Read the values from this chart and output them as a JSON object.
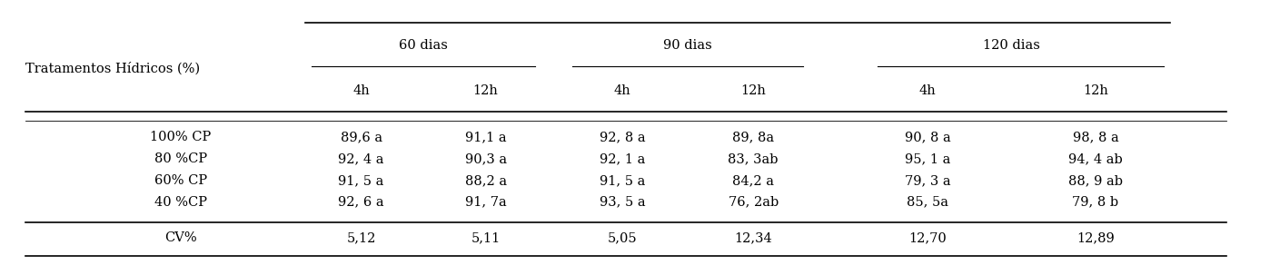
{
  "group_labels": [
    "60 dias",
    "90 dias",
    "120 dias"
  ],
  "sub_labels": [
    "4h",
    "12h",
    "4h",
    "12h",
    "4h",
    "12h"
  ],
  "tratamentos_label": "Tratamentos Hídricos (%)",
  "rows": [
    [
      "100% CP",
      "89,6 a",
      "91,1 a",
      "92, 8 a",
      "89, 8a",
      "90, 8 a",
      "98, 8 a"
    ],
    [
      "80 %CP",
      "92, 4 a",
      "90,3 a",
      "92, 1 a",
      "83, 3ab",
      "95, 1 a",
      "94, 4 ab"
    ],
    [
      "60% CP",
      "91, 5 a",
      "88,2 a",
      "91, 5 a",
      "84,2 a",
      "79, 3 a",
      "88, 9 ab"
    ],
    [
      "40 %CP",
      "92, 6 a",
      "91, 7a",
      "93, 5 a",
      "76, 2ab",
      "85, 5a",
      "79, 8 b"
    ]
  ],
  "cv_row": [
    "CV%",
    "5,12",
    "5,11",
    "5,05",
    "12,34",
    "12,70",
    "12,89"
  ],
  "background_color": "#ffffff",
  "text_color": "#000000",
  "font_size": 10.5
}
